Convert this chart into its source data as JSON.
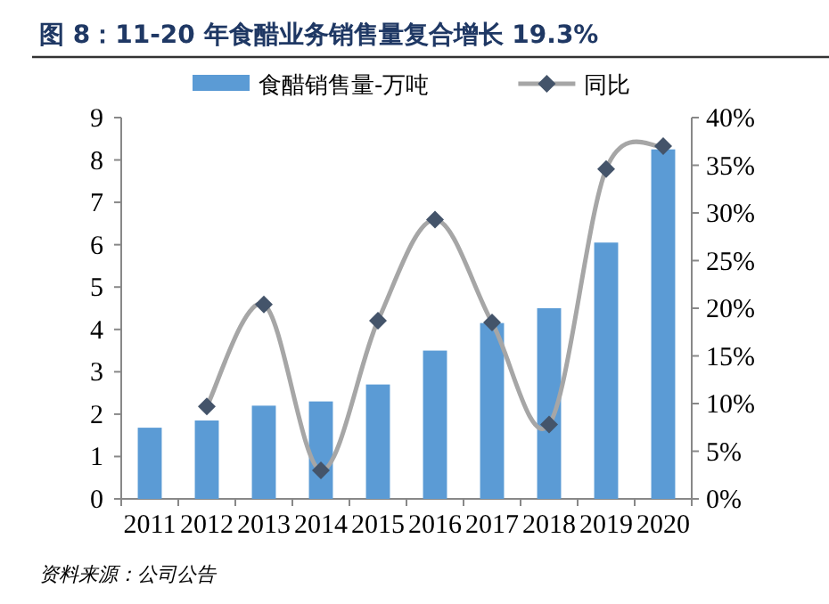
{
  "chart_data": {
    "type": "bar",
    "title": "图 8：11-20 年食醋业务销售量复合增长 19.3%",
    "categories": [
      "2011",
      "2012",
      "2013",
      "2014",
      "2015",
      "2016",
      "2017",
      "2018",
      "2019",
      "2020"
    ],
    "series": [
      {
        "name": "食醋销售量-万吨",
        "color": "#5b9bd5",
        "values": [
          1.68,
          1.85,
          2.2,
          2.3,
          2.7,
          3.5,
          4.15,
          4.5,
          6.05,
          8.25
        ]
      },
      {
        "name": "同比",
        "type": "line",
        "axis": "y2",
        "color": "#a6a6a6",
        "marker": "diamond",
        "values": [
          null,
          9.7,
          20.4,
          3.0,
          18.7,
          29.3,
          18.5,
          7.8,
          34.6,
          37.0
        ]
      }
    ],
    "ylim": [
      0,
      9
    ],
    "yticks": [
      0,
      1,
      2,
      3,
      4,
      5,
      6,
      7,
      8,
      9
    ],
    "y2lim": [
      0,
      40
    ],
    "y2ticks": [
      {
        "value": 0,
        "label": "0%"
      },
      {
        "value": 5,
        "label": "5%"
      },
      {
        "value": 10,
        "label": "10%"
      },
      {
        "value": 15,
        "label": "15%"
      },
      {
        "value": 20,
        "label": "20%"
      },
      {
        "value": 25,
        "label": "25%"
      },
      {
        "value": 30,
        "label": "30%"
      },
      {
        "value": 35,
        "label": "35%"
      },
      {
        "value": 40,
        "label": "40%"
      }
    ],
    "legend": "top",
    "grid": false,
    "annotations": [
      "资料来源：公司公告"
    ]
  }
}
